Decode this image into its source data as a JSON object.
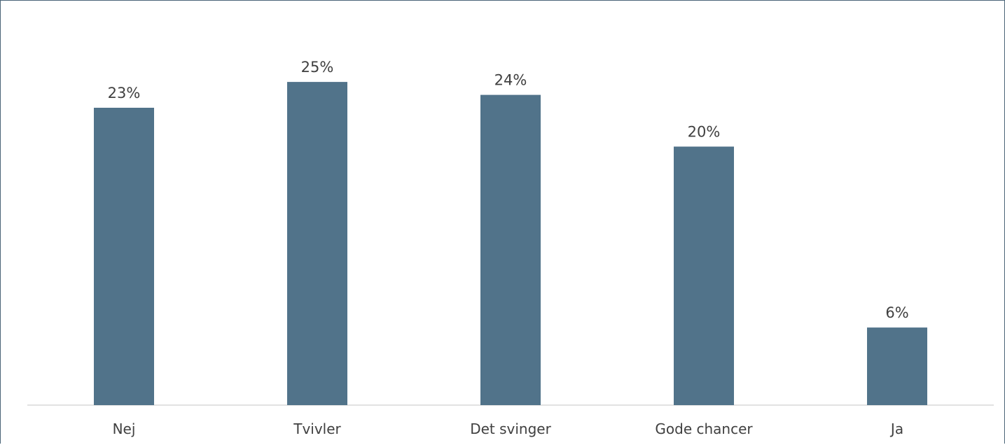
{
  "chart_data": {
    "type": "bar",
    "categories": [
      "Nej",
      "Tvivler",
      "Det svinger",
      "Gode chancer",
      "Ja"
    ],
    "values": [
      23,
      25,
      24,
      20,
      6
    ],
    "data_labels": [
      "23%",
      "25%",
      "24%",
      "20%",
      "6%"
    ],
    "title": "",
    "xlabel": "",
    "ylabel": "",
    "ylim": [
      0,
      25.6
    ],
    "grid": false,
    "legend": "none",
    "bar_color": "#51738a",
    "axis_color": "#d9d9d9",
    "text_color": "#404040",
    "border_color": "#4a6478"
  }
}
